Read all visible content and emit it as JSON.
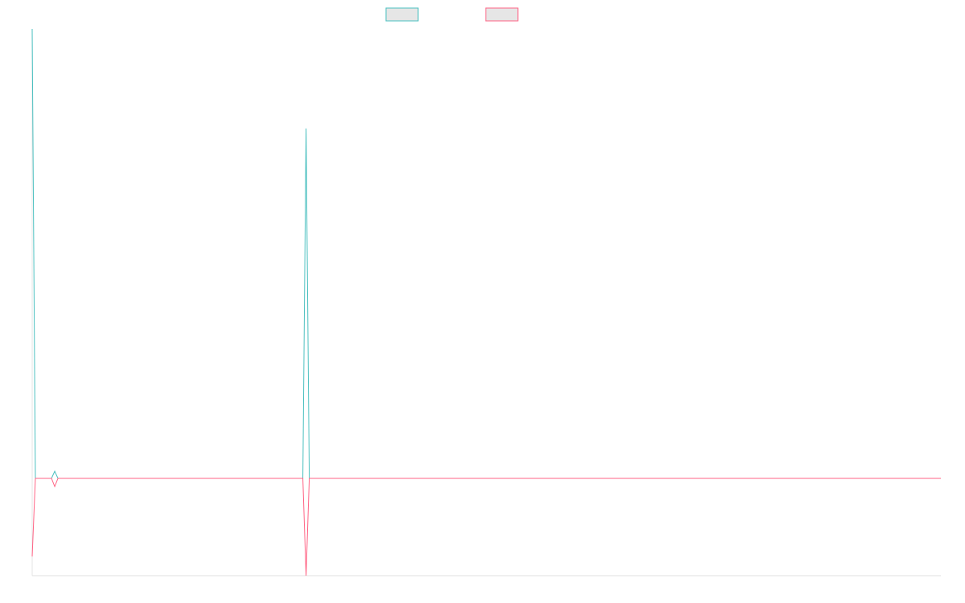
{
  "chart_data": {
    "type": "line",
    "x": [
      0,
      1,
      6,
      7,
      8,
      84,
      85,
      86,
      282
    ],
    "xlim": [
      0,
      282
    ],
    "ylim": [
      0,
      100
    ],
    "series": [
      {
        "color": "#4bc0c0",
        "values": [
          100,
          17.8,
          17.8,
          19.1,
          17.8,
          17.8,
          81.8,
          17.8,
          17.8
        ]
      },
      {
        "color": "#ff6384",
        "values": [
          3.5,
          17.8,
          17.8,
          16.3,
          17.8,
          17.8,
          0,
          17.8,
          17.8
        ]
      }
    ]
  }
}
